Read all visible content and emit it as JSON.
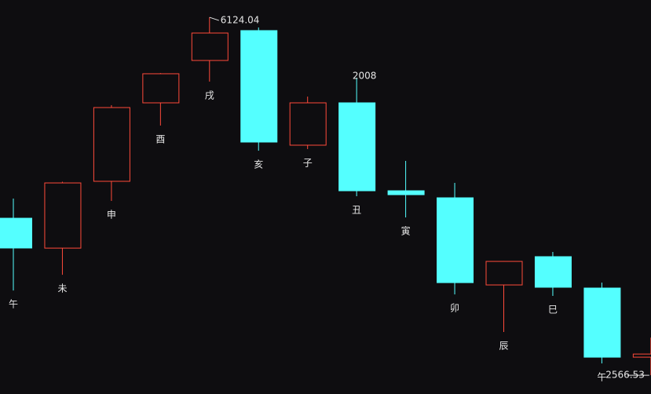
{
  "chart_data": {
    "type": "candlestick",
    "categories": [
      "午",
      "未",
      "申",
      "酉",
      "戌",
      "亥",
      "子",
      "丑",
      "寅",
      "卯",
      "辰",
      "巳",
      "午",
      null
    ],
    "open": [
      4127,
      3830,
      4494,
      5274,
      5695,
      5992,
      4853,
      5274,
      4400,
      4330,
      3464,
      3745,
      3433,
      2746
    ],
    "high": [
      4322,
      4490,
      5251,
      5570,
      6124.04,
      6023,
      5336,
      5524,
      4697,
      4478,
      3700,
      3792,
      3487,
      2941
    ],
    "low": [
      3409,
      3565,
      4299,
      5048,
      5485,
      4798,
      4814,
      4346,
      4135,
      3370,
      2996,
      3355,
      2684,
      2566.53
    ],
    "close": [
      3831,
      4478,
      5227,
      5563,
      5968,
      4884,
      5274,
      4400,
      4361,
      3487,
      3698,
      3441,
      2746,
      2777
    ],
    "up_color": "#ff4a3a",
    "down_color": "#54ffff",
    "ylim": [
      2380,
      6296
    ],
    "high_label": "6124.04",
    "low_label": "2566.53",
    "annotation": {
      "text": "2008",
      "index": 7
    }
  }
}
